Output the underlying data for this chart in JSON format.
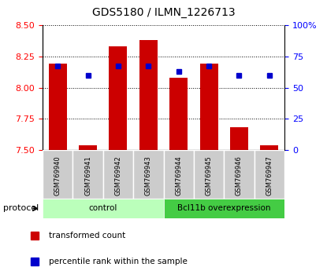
{
  "title": "GDS5180 / ILMN_1226713",
  "samples": [
    "GSM769940",
    "GSM769941",
    "GSM769942",
    "GSM769943",
    "GSM769944",
    "GSM769945",
    "GSM769946",
    "GSM769947"
  ],
  "red_values": [
    8.19,
    7.54,
    8.33,
    8.38,
    8.08,
    8.19,
    7.68,
    7.54
  ],
  "blue_values": [
    67,
    60,
    67,
    67,
    63,
    67,
    60,
    60
  ],
  "ymin": 7.5,
  "ymax": 8.5,
  "yticks": [
    7.5,
    7.75,
    8.0,
    8.25,
    8.5
  ],
  "right_yticks": [
    0,
    25,
    50,
    75,
    100
  ],
  "right_yticklabels": [
    "0",
    "25",
    "50",
    "75",
    "100%"
  ],
  "bar_color": "#cc0000",
  "blue_color": "#0000cc",
  "groups": [
    {
      "label": "control",
      "start": 0,
      "end": 3,
      "color": "#bbffbb"
    },
    {
      "label": "Bcl11b overexpression",
      "start": 4,
      "end": 7,
      "color": "#44cc44"
    }
  ],
  "legend_red": "transformed count",
  "legend_blue": "percentile rank within the sample",
  "protocol_label": "protocol"
}
